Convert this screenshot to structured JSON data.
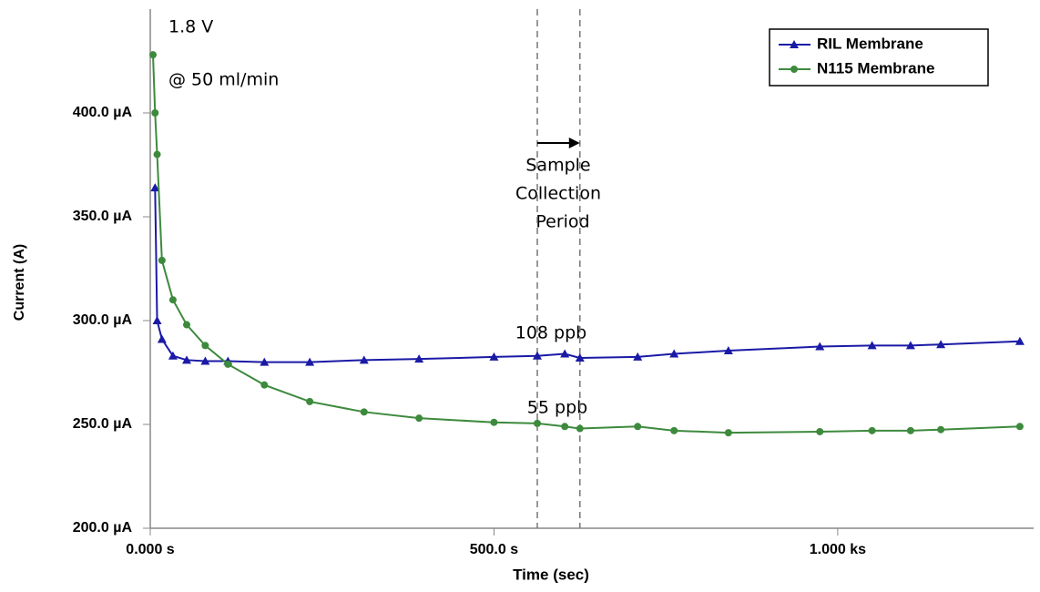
{
  "chart_data": {
    "type": "line",
    "x_label": "Time (sec)",
    "y_label": "Current (A)",
    "x": [
      4,
      7,
      10,
      17,
      33,
      53,
      80,
      113,
      166,
      232,
      311,
      391,
      500,
      563,
      603,
      625,
      709,
      762,
      841,
      974,
      1050,
      1106,
      1150,
      1265
    ],
    "series": [
      {
        "name": "RIL Membrane",
        "color": "#1a1aa6",
        "marker": "triangle",
        "values": [
          null,
          364,
          300,
          291,
          283,
          281,
          280.5,
          280.5,
          280,
          280,
          281,
          281.5,
          282.5,
          283,
          284,
          282,
          282.5,
          284,
          285.5,
          287.5,
          288,
          288,
          288.5,
          290
        ]
      },
      {
        "name": "N115 Membrane",
        "color": "#3d8a3d",
        "marker": "circle",
        "values": [
          428,
          400,
          380,
          329,
          310,
          298,
          288,
          279,
          269,
          261,
          256,
          253,
          251,
          250.5,
          249,
          248,
          249,
          247,
          246,
          246.5,
          247,
          247,
          247.5,
          249
        ]
      }
    ],
    "xlim": [
      0,
      1285
    ],
    "ylim": [
      200,
      450
    ],
    "xticks": [
      {
        "value": 0,
        "label": "0.000 s"
      },
      {
        "value": 500,
        "label": "500.0 s"
      },
      {
        "value": 1000,
        "label": "1.000 ks"
      }
    ],
    "yticks": [
      {
        "value": 200,
        "label": "200.0 µA"
      },
      {
        "value": 250,
        "label": "250.0 µA"
      },
      {
        "value": 300,
        "label": "300.0 µA"
      },
      {
        "value": 350,
        "label": "350.0 µA"
      },
      {
        "value": 400,
        "label": "400.0 µA"
      }
    ],
    "vlines": [
      563,
      625
    ],
    "annotations": [
      "1.8 V",
      "@ 50 ml/min",
      "Sample",
      "Collection",
      "Period",
      "108 ppb",
      "55 ppb"
    ],
    "legend": "top-right"
  }
}
